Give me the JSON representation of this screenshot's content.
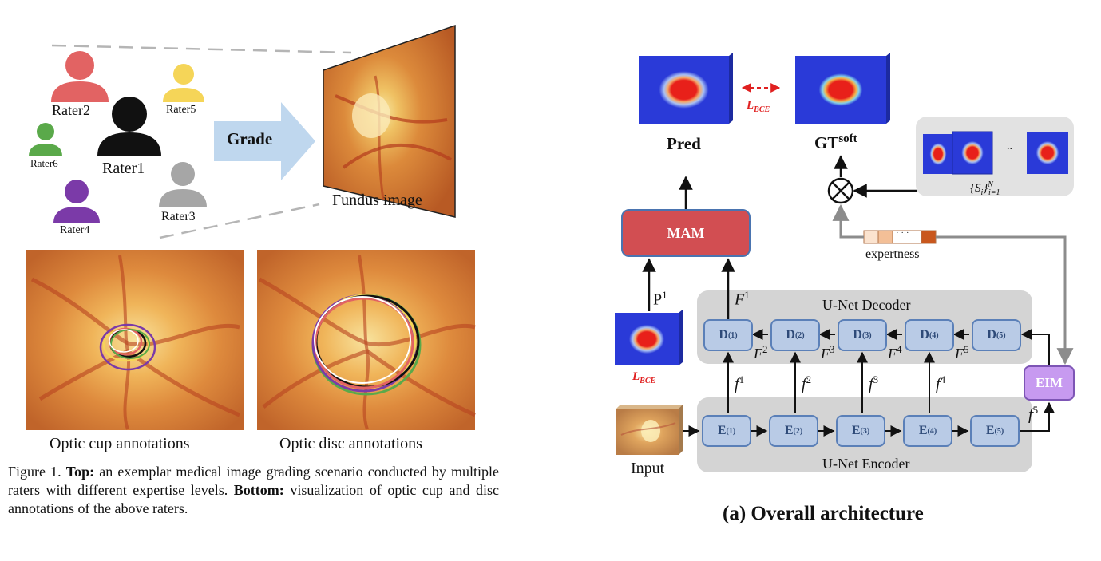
{
  "left_figure": {
    "raters": [
      "Rater1",
      "Rater2",
      "Rater3",
      "Rater4",
      "Rater5",
      "Rater6"
    ],
    "grade_label": "Grade",
    "fundus_label": "Fundus image",
    "cup_caption": "Optic cup annotations",
    "disc_caption": "Optic disc annotations",
    "caption": {
      "prefix": "Figure 1.",
      "top_bold": "Top:",
      "top_text": " an exemplar medical image grading scenario conducted by multiple raters with different expertise levels.",
      "bottom_bold": "Bottom:",
      "bottom_text": " visualization of optic cup and disc annotations of the above raters."
    },
    "colors": {
      "rater1": "#111111",
      "rater2": "#e26363",
      "rater3": "#a6a6a6",
      "rater4": "#7b3aa8",
      "rater5": "#f5d558",
      "rater6": "#5aa94a",
      "arrow": "#bfd7ee"
    }
  },
  "right_figure": {
    "pred_label": "Pred",
    "gt_label": "GT",
    "gt_sup": "soft",
    "loss_label": "L",
    "loss_sub": "BCE",
    "set_label": "{S",
    "set_sub": "i",
    "set_rest": "}",
    "set_sup": "N",
    "set_sub2": "i=1",
    "ellipsis": "..",
    "expertness_label": "expertness",
    "mam_label": "MAM",
    "eim_label": "EIM",
    "decoder_label": "U-Net Decoder",
    "encoder_label": "U-Net Encoder",
    "input_label": "Input",
    "p1": "P",
    "p1_sup": "1",
    "F1": "F",
    "F1_sup": "1",
    "F_letter": "F",
    "f_letter": "f",
    "decoder_blocks": [
      "D",
      "D",
      "D",
      "D",
      "D"
    ],
    "decoder_sups": [
      "(1)",
      "(2)",
      "(3)",
      "(4)",
      "(5)"
    ],
    "encoder_blocks": [
      "E",
      "E",
      "E",
      "E",
      "E"
    ],
    "encoder_sups": [
      "(1)",
      "(2)",
      "(3)",
      "(4)",
      "(5)"
    ],
    "F_sups": [
      "2",
      "3",
      "4",
      "5"
    ],
    "f_sups": [
      "1",
      "2",
      "3",
      "4",
      "5"
    ],
    "expertness_dots": "· · ·",
    "caption": "(a) Overall architecture"
  }
}
